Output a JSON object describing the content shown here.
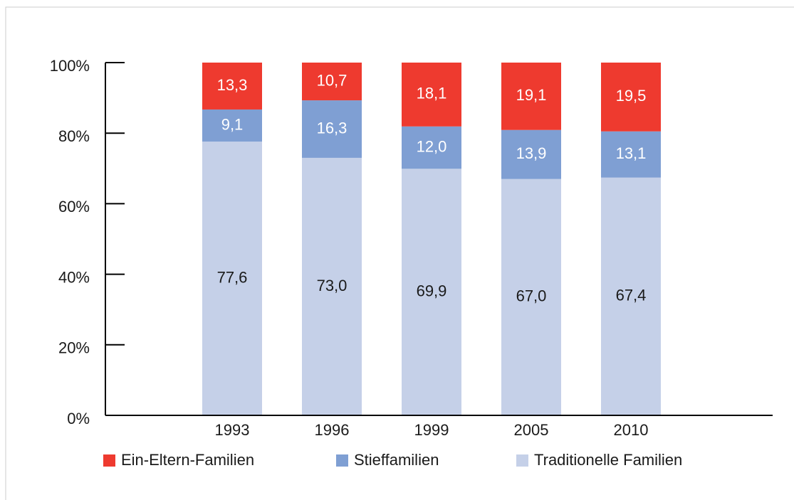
{
  "chart_data": {
    "type": "stacked_bar",
    "categories": [
      "1993",
      "1996",
      "1999",
      "2005",
      "2010"
    ],
    "series": [
      {
        "name": "Ein-Eltern-Familien",
        "color": "#ee3a2f",
        "label_color": "#ffffff",
        "values": [
          13.3,
          10.7,
          18.1,
          19.1,
          19.5
        ],
        "value_labels": [
          "13,3",
          "10,7",
          "18,1",
          "19,1",
          "19,5"
        ]
      },
      {
        "name": "Stieffamilien",
        "color": "#7f9fd3",
        "label_color": "#ffffff",
        "values": [
          9.1,
          16.3,
          12.0,
          13.9,
          13.1
        ],
        "value_labels": [
          "9,1",
          "16,3",
          "12,0",
          "13,9",
          "13,1"
        ]
      },
      {
        "name": "Traditionelle Familien",
        "color": "#c5d0e8",
        "label_color": "#1a1a1a",
        "values": [
          77.6,
          73.0,
          69.9,
          67.0,
          67.4
        ],
        "value_labels": [
          "77,6",
          "73,0",
          "69,9",
          "67,0",
          "67,4"
        ]
      }
    ],
    "ylim": [
      0,
      100
    ],
    "yticks": [
      {
        "value": 0,
        "label": "0%"
      },
      {
        "value": 20,
        "label": "20%"
      },
      {
        "value": 40,
        "label": "40%"
      },
      {
        "value": 60,
        "label": "60%"
      },
      {
        "value": 80,
        "label": "80%"
      },
      {
        "value": 100,
        "label": "100%"
      }
    ]
  }
}
